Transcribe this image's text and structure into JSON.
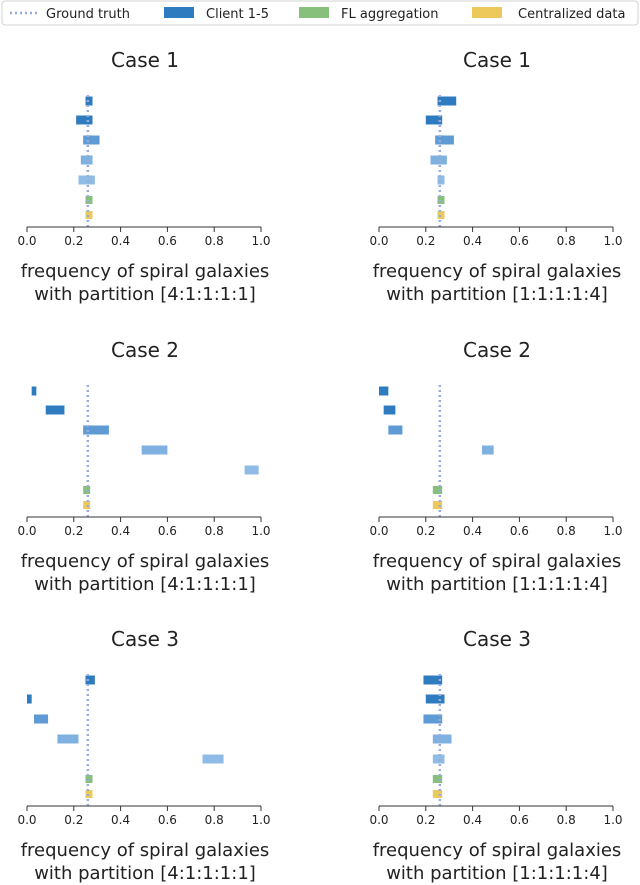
{
  "legend": {
    "items": [
      {
        "label": "Ground truth",
        "kind": "dotted-line",
        "color": "#98acd9"
      },
      {
        "label": "Client 1-5",
        "kind": "bar",
        "color": "#2f7bbf"
      },
      {
        "label": "FL aggregation",
        "kind": "bar",
        "color": "#86c07a"
      },
      {
        "label": "Centralized data",
        "kind": "bar",
        "color": "#ecc95a"
      }
    ]
  },
  "colors": {
    "client_shades": [
      "#2f7bbf",
      "#2f7bbf",
      "#5e9ad3",
      "#7fb1e0",
      "#8fbce7"
    ],
    "fl": "#86c07a",
    "central": "#ecc95a",
    "truth": "#98acd9"
  },
  "chart_data": [
    {
      "type": "bar",
      "title": "Case 1",
      "xlabel": [
        "frequency of spiral galaxies",
        "with partition [4:1:1:1:1]"
      ],
      "xlim": [
        0,
        1
      ],
      "xticks": [
        "0.0",
        "0.2",
        "0.4",
        "0.6",
        "0.8",
        "1.0"
      ],
      "ground_truth": 0.26,
      "clients": [
        [
          0.25,
          0.28
        ],
        [
          0.21,
          0.28
        ],
        [
          0.24,
          0.31
        ],
        [
          0.23,
          0.28
        ],
        [
          0.22,
          0.29
        ]
      ],
      "fl": [
        0.25,
        0.28
      ],
      "central": [
        0.25,
        0.28
      ]
    },
    {
      "type": "bar",
      "title": "Case 1",
      "xlabel": [
        "frequency of spiral galaxies",
        "with partition [1:1:1:1:4]"
      ],
      "xlim": [
        0,
        1
      ],
      "xticks": [
        "0.0",
        "0.2",
        "0.4",
        "0.6",
        "0.8",
        "1.0"
      ],
      "ground_truth": 0.26,
      "clients": [
        [
          0.25,
          0.33
        ],
        [
          0.2,
          0.27
        ],
        [
          0.24,
          0.32
        ],
        [
          0.22,
          0.29
        ],
        [
          0.25,
          0.28
        ]
      ],
      "fl": [
        0.25,
        0.28
      ],
      "central": [
        0.25,
        0.28
      ]
    },
    {
      "type": "bar",
      "title": "Case 2",
      "xlabel": [
        "frequency of spiral galaxies",
        "with partition [4:1:1:1:1]"
      ],
      "xlim": [
        0,
        1
      ],
      "xticks": [
        "0.0",
        "0.2",
        "0.4",
        "0.6",
        "0.8",
        "1.0"
      ],
      "ground_truth": 0.26,
      "clients": [
        [
          0.02,
          0.04
        ],
        [
          0.08,
          0.16
        ],
        [
          0.24,
          0.35
        ],
        [
          0.49,
          0.6
        ],
        [
          0.93,
          0.99
        ]
      ],
      "fl": [
        0.24,
        0.27
      ],
      "central": [
        0.24,
        0.27
      ]
    },
    {
      "type": "bar",
      "title": "Case 2",
      "xlabel": [
        "frequency of spiral galaxies",
        "with partition [1:1:1:1:4]"
      ],
      "xlim": [
        0,
        1
      ],
      "xticks": [
        "0.0",
        "0.2",
        "0.4",
        "0.6",
        "0.8",
        "1.0"
      ],
      "ground_truth": 0.26,
      "clients": [
        [
          0.0,
          0.04
        ],
        [
          0.02,
          0.07
        ],
        [
          0.04,
          0.1
        ],
        [
          0.44,
          0.49
        ],
        [
          0.0,
          0.0
        ]
      ],
      "fl": [
        0.23,
        0.27
      ],
      "central": [
        0.23,
        0.27
      ]
    },
    {
      "type": "bar",
      "title": "Case 3",
      "xlabel": [
        "frequency of spiral galaxies",
        "with partition [4:1:1:1:1]"
      ],
      "xlim": [
        0,
        1
      ],
      "xticks": [
        "0.0",
        "0.2",
        "0.4",
        "0.6",
        "0.8",
        "1.0"
      ],
      "ground_truth": 0.26,
      "clients": [
        [
          0.25,
          0.29
        ],
        [
          0.0,
          0.02
        ],
        [
          0.03,
          0.09
        ],
        [
          0.13,
          0.22
        ],
        [
          0.75,
          0.84
        ]
      ],
      "fl": [
        0.25,
        0.28
      ],
      "central": [
        0.25,
        0.28
      ]
    },
    {
      "type": "bar",
      "title": "Case 3",
      "xlabel": [
        "frequency of spiral galaxies",
        "with partition [1:1:1:1:4]"
      ],
      "xlim": [
        0,
        1
      ],
      "xticks": [
        "0.0",
        "0.2",
        "0.4",
        "0.6",
        "0.8",
        "1.0"
      ],
      "ground_truth": 0.26,
      "clients": [
        [
          0.19,
          0.27
        ],
        [
          0.2,
          0.28
        ],
        [
          0.19,
          0.27
        ],
        [
          0.23,
          0.31
        ],
        [
          0.23,
          0.28
        ]
      ],
      "fl": [
        0.23,
        0.27
      ],
      "central": [
        0.23,
        0.27
      ]
    }
  ]
}
